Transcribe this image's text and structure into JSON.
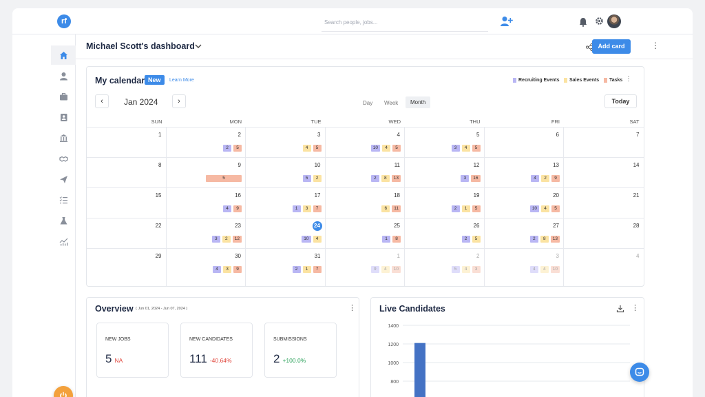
{
  "topbar": {
    "search_placeholder": "Search people, jobs..."
  },
  "header": {
    "dashboard_title": "Michael Scott's dashboard",
    "add_card_label": "Add card"
  },
  "sidebar": {
    "items": [
      "home-icon",
      "person-icon",
      "briefcase-icon",
      "contact-icon",
      "bank-icon",
      "handshake-icon",
      "send-icon",
      "checklist-icon",
      "flask-icon",
      "analytics-icon"
    ]
  },
  "calendar": {
    "title": "My calendar",
    "new_badge": "New",
    "learn_more": "Learn More",
    "legend": [
      {
        "label": "Recruiting Events",
        "color": "#b9b6f4"
      },
      {
        "label": "Sales Events",
        "color": "#fbe3a2"
      },
      {
        "label": "Tasks",
        "color": "#f6b9a3"
      }
    ],
    "month_label": "Jan 2024",
    "views": [
      "Day",
      "Week",
      "Month"
    ],
    "active_view": "Month",
    "today_label": "Today",
    "weekdays": [
      "SUN",
      "MON",
      "TUE",
      "WED",
      "THU",
      "FRI",
      "SAT"
    ],
    "weeks": [
      [
        {
          "day": "1",
          "chips": []
        },
        {
          "day": "2",
          "chips": [
            {
              "t": "r",
              "v": "2"
            },
            {
              "t": "t",
              "v": "5"
            }
          ]
        },
        {
          "day": "3",
          "chips": [
            {
              "t": "s",
              "v": "4"
            },
            {
              "t": "t",
              "v": "5"
            }
          ]
        },
        {
          "day": "4",
          "chips": [
            {
              "t": "r",
              "v": "10"
            },
            {
              "t": "s",
              "v": "4"
            },
            {
              "t": "t",
              "v": "5"
            }
          ]
        },
        {
          "day": "5",
          "chips": [
            {
              "t": "r",
              "v": "3"
            },
            {
              "t": "s",
              "v": "4"
            },
            {
              "t": "t",
              "v": "5"
            }
          ]
        },
        {
          "day": "6",
          "chips": []
        },
        {
          "day": "7",
          "chips": []
        }
      ],
      [
        {
          "day": "8",
          "chips": []
        },
        {
          "day": "9",
          "chips": [
            {
              "t": "t",
              "v": "5",
              "wide": true
            }
          ]
        },
        {
          "day": "10",
          "chips": [
            {
              "t": "r",
              "v": "5"
            },
            {
              "t": "s",
              "v": "2"
            }
          ]
        },
        {
          "day": "11",
          "chips": [
            {
              "t": "r",
              "v": "2"
            },
            {
              "t": "s",
              "v": "8"
            },
            {
              "t": "t",
              "v": "13"
            }
          ]
        },
        {
          "day": "12",
          "chips": [
            {
              "t": "r",
              "v": "3"
            },
            {
              "t": "t",
              "v": "16"
            }
          ]
        },
        {
          "day": "13",
          "chips": [
            {
              "t": "r",
              "v": "4"
            },
            {
              "t": "s",
              "v": "2"
            },
            {
              "t": "t",
              "v": "9"
            }
          ]
        },
        {
          "day": "14",
          "chips": []
        }
      ],
      [
        {
          "day": "15",
          "chips": []
        },
        {
          "day": "16",
          "chips": [
            {
              "t": "r",
              "v": "4"
            },
            {
              "t": "t",
              "v": "9"
            }
          ]
        },
        {
          "day": "17",
          "chips": [
            {
              "t": "r",
              "v": "1"
            },
            {
              "t": "s",
              "v": "3"
            },
            {
              "t": "t",
              "v": "7"
            }
          ]
        },
        {
          "day": "18",
          "chips": [
            {
              "t": "s",
              "v": "6"
            },
            {
              "t": "t",
              "v": "11"
            }
          ]
        },
        {
          "day": "19",
          "chips": [
            {
              "t": "r",
              "v": "2"
            },
            {
              "t": "s",
              "v": "1"
            },
            {
              "t": "t",
              "v": "5"
            }
          ]
        },
        {
          "day": "20",
          "chips": [
            {
              "t": "r",
              "v": "10"
            },
            {
              "t": "s",
              "v": "4"
            },
            {
              "t": "t",
              "v": "5"
            }
          ]
        },
        {
          "day": "21",
          "chips": []
        }
      ],
      [
        {
          "day": "22",
          "chips": []
        },
        {
          "day": "23",
          "chips": [
            {
              "t": "r",
              "v": "3"
            },
            {
              "t": "s",
              "v": "2"
            },
            {
              "t": "t",
              "v": "12"
            }
          ]
        },
        {
          "day": "24",
          "today": true,
          "chips": [
            {
              "t": "r",
              "v": "10"
            },
            {
              "t": "s",
              "v": "4"
            }
          ]
        },
        {
          "day": "25",
          "chips": [
            {
              "t": "r",
              "v": "1"
            },
            {
              "t": "t",
              "v": "8"
            }
          ]
        },
        {
          "day": "26",
          "chips": [
            {
              "t": "r",
              "v": "2"
            },
            {
              "t": "s",
              "v": "5"
            }
          ]
        },
        {
          "day": "27",
          "chips": [
            {
              "t": "r",
              "v": "2"
            },
            {
              "t": "s",
              "v": "8"
            },
            {
              "t": "t",
              "v": "13"
            }
          ]
        },
        {
          "day": "28",
          "chips": []
        }
      ],
      [
        {
          "day": "29",
          "chips": []
        },
        {
          "day": "30",
          "chips": [
            {
              "t": "r",
              "v": "4"
            },
            {
              "t": "s",
              "v": "3"
            },
            {
              "t": "t",
              "v": "9"
            }
          ]
        },
        {
          "day": "31",
          "chips": [
            {
              "t": "r",
              "v": "2"
            },
            {
              "t": "s",
              "v": "1"
            },
            {
              "t": "t",
              "v": "7"
            }
          ]
        },
        {
          "day": "1",
          "muted": true,
          "chips": [
            {
              "t": "r",
              "v": "9"
            },
            {
              "t": "s",
              "v": "4"
            },
            {
              "t": "t",
              "v": "10"
            }
          ]
        },
        {
          "day": "2",
          "muted": true,
          "chips": [
            {
              "t": "r",
              "v": "5"
            },
            {
              "t": "s",
              "v": "4"
            },
            {
              "t": "t",
              "v": "3"
            }
          ]
        },
        {
          "day": "3",
          "muted": true,
          "chips": [
            {
              "t": "r",
              "v": "4"
            },
            {
              "t": "s",
              "v": "4"
            },
            {
              "t": "t",
              "v": "10"
            }
          ]
        },
        {
          "day": "4",
          "muted": true,
          "chips": []
        }
      ]
    ]
  },
  "overview": {
    "title": "Overview",
    "date_range": "( Jun 01, 2024 - Jun 07, 2024 )",
    "stats": [
      {
        "label": "NEW JOBS",
        "value": "5",
        "delta": "NA",
        "trend": "down"
      },
      {
        "label": "NEW CANDIDATES",
        "value": "111",
        "delta": "-40.64%",
        "trend": "down"
      },
      {
        "label": "SUBMISSIONS",
        "value": "2",
        "delta": "+100.0%",
        "trend": "up"
      }
    ]
  },
  "live_candidates": {
    "title": "Live Candidates",
    "chart_data": {
      "type": "bar",
      "categories": [
        ""
      ],
      "values": [
        1210
      ],
      "title": "",
      "xlabel": "",
      "ylabel": "",
      "yticks": [
        "1400",
        "1200",
        "1000",
        "800"
      ],
      "ylim": [
        800,
        1400
      ],
      "bar_color": "#4472c4"
    }
  },
  "colors": {
    "accent": "#3d8be8",
    "recruiting": "#b9b6f4",
    "sales": "#fbe3a2",
    "tasks": "#f6b9a3"
  }
}
